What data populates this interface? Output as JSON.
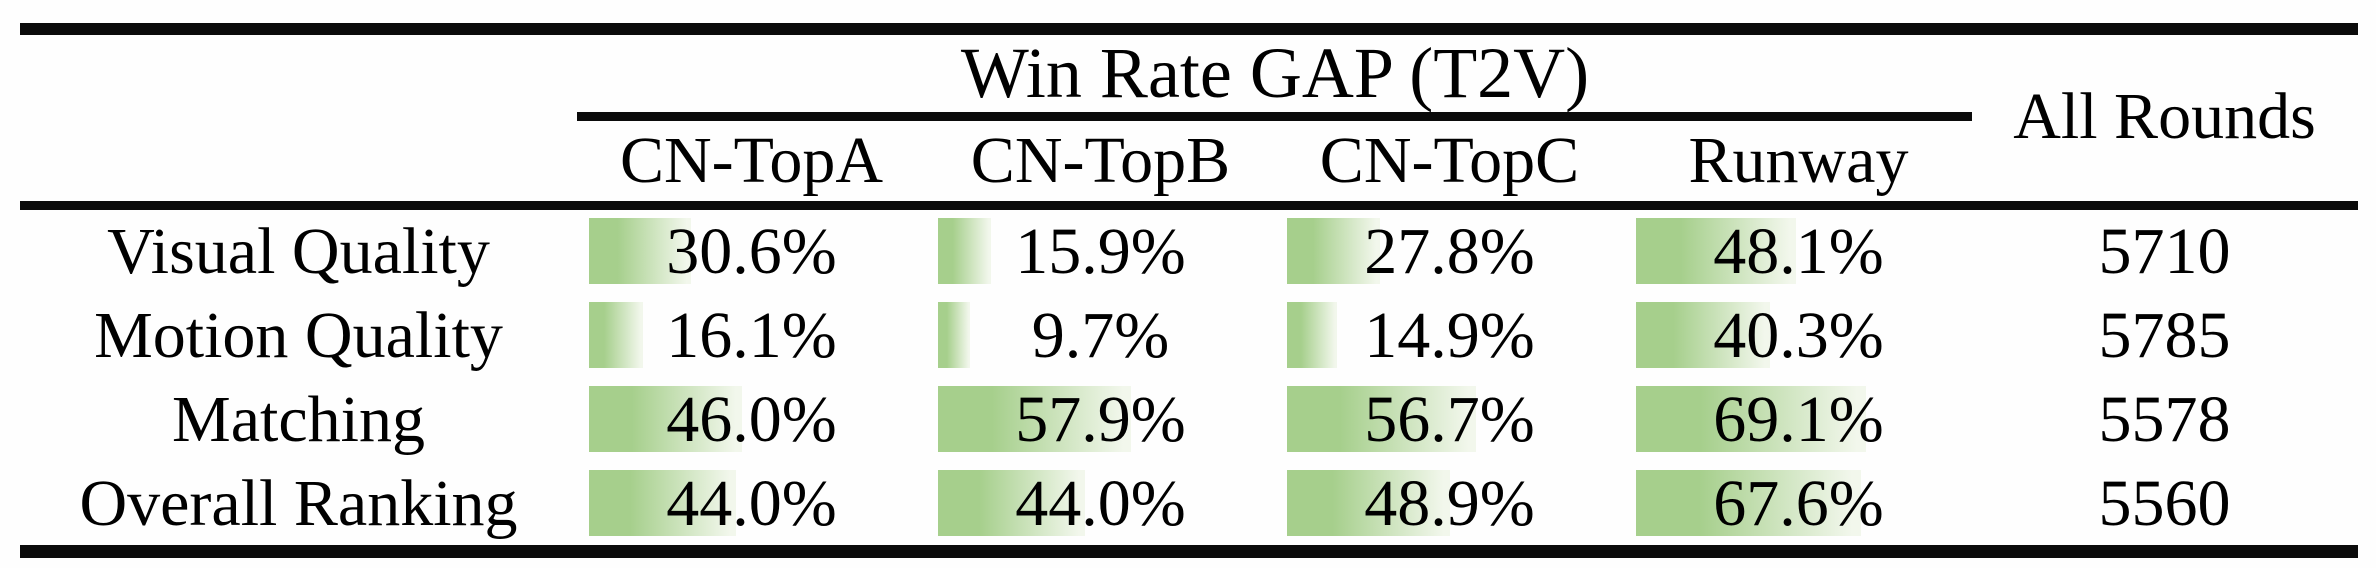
{
  "table": {
    "group_header": "Win Rate GAP (T2V)",
    "all_rounds_header": "All Rounds",
    "columns": [
      "CN-TopA",
      "CN-TopB",
      "CN-TopC",
      "Runway"
    ],
    "rows": [
      {
        "label": "Visual Quality",
        "values": [
          "30.6%",
          "15.9%",
          "27.8%",
          "48.1%"
        ],
        "pcts": [
          30.6,
          15.9,
          27.8,
          48.1
        ],
        "all_rounds": "5710"
      },
      {
        "label": "Motion Quality",
        "values": [
          "16.1%",
          "9.7%",
          "14.9%",
          "40.3%"
        ],
        "pcts": [
          16.1,
          9.7,
          14.9,
          40.3
        ],
        "all_rounds": "5785"
      },
      {
        "label": "Matching",
        "values": [
          "46.0%",
          "57.9%",
          "56.7%",
          "69.1%"
        ],
        "pcts": [
          46.0,
          57.9,
          56.7,
          69.1
        ],
        "all_rounds": "5578"
      },
      {
        "label": "Overall Ranking",
        "values": [
          "44.0%",
          "44.0%",
          "48.9%",
          "67.6%"
        ],
        "pcts": [
          44.0,
          44.0,
          48.9,
          67.6
        ],
        "all_rounds": "5560"
      }
    ],
    "bar_color_left": "#a6cf8c",
    "bar_color_right": "#f2f7ec",
    "rule_color": "#0b0b0b",
    "text_color": "#000000"
  }
}
